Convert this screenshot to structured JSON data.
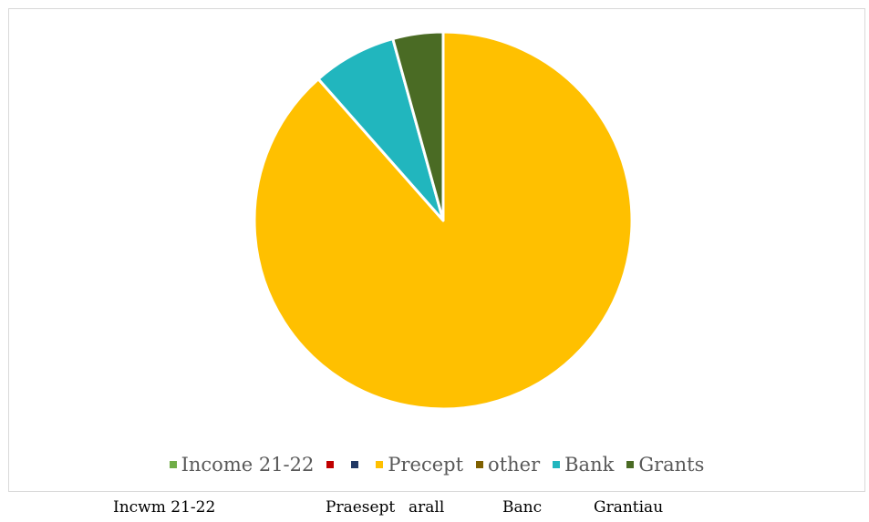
{
  "chart_data": {
    "type": "pie",
    "title": "",
    "slices": [
      {
        "label": "Income 21-22",
        "value": 0,
        "color": "#70AD47"
      },
      {
        "label": "",
        "value": 0,
        "color": "#C00000"
      },
      {
        "label": "",
        "value": 0,
        "color": "#203864"
      },
      {
        "label": "Precept",
        "value": 88.5,
        "color": "#FFC000"
      },
      {
        "label": "other",
        "value": 0,
        "color": "#7F6000"
      },
      {
        "label": "Bank",
        "value": 7.2,
        "color": "#21B6BE"
      },
      {
        "label": "Grants",
        "value": 4.3,
        "color": "#4A6B24"
      }
    ],
    "legend_position": "bottom"
  },
  "bottom_labels": [
    "Incwm 21-22",
    "Praesept",
    "arall",
    "Banc",
    "Grantiau"
  ]
}
